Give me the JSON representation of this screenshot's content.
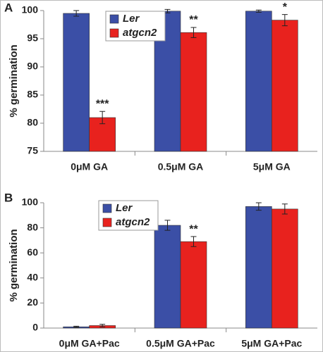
{
  "chart_data": [
    {
      "type": "bar",
      "panel": "A",
      "y_label": "% germination",
      "categories": [
        "0μM GA",
        "0.5μM GA",
        "5μM GA"
      ],
      "series": [
        {
          "name": "Ler",
          "color": "#3b4fa6",
          "values": [
            99.5,
            99.9,
            99.9
          ],
          "errors": [
            0.5,
            0.3,
            0.2
          ]
        },
        {
          "name": "atgcn2",
          "color": "#e8221e",
          "values": [
            81,
            96.1,
            98.3
          ],
          "errors": [
            1.1,
            0.9,
            1.0
          ],
          "significance": [
            "***",
            "**",
            "*"
          ]
        }
      ],
      "ylim": [
        75,
        100
      ],
      "yticks": [
        75,
        80,
        85,
        90,
        95,
        100
      ]
    },
    {
      "type": "bar",
      "panel": "B",
      "y_label": "% germination",
      "categories": [
        "0μM GA+Pac",
        "0.5μM GA+Pac",
        "5μM GA+Pac"
      ],
      "series": [
        {
          "name": "Ler",
          "color": "#3b4fa6",
          "values": [
            1,
            82,
            97
          ],
          "errors": [
            0.5,
            4,
            3
          ]
        },
        {
          "name": "atgcn2",
          "color": "#e8221e",
          "values": [
            2,
            69,
            95
          ],
          "errors": [
            1,
            4,
            4
          ],
          "significance": [
            null,
            "**",
            null
          ]
        }
      ],
      "ylim": [
        0,
        100
      ],
      "yticks": [
        0,
        20,
        40,
        60,
        80,
        100
      ]
    }
  ]
}
